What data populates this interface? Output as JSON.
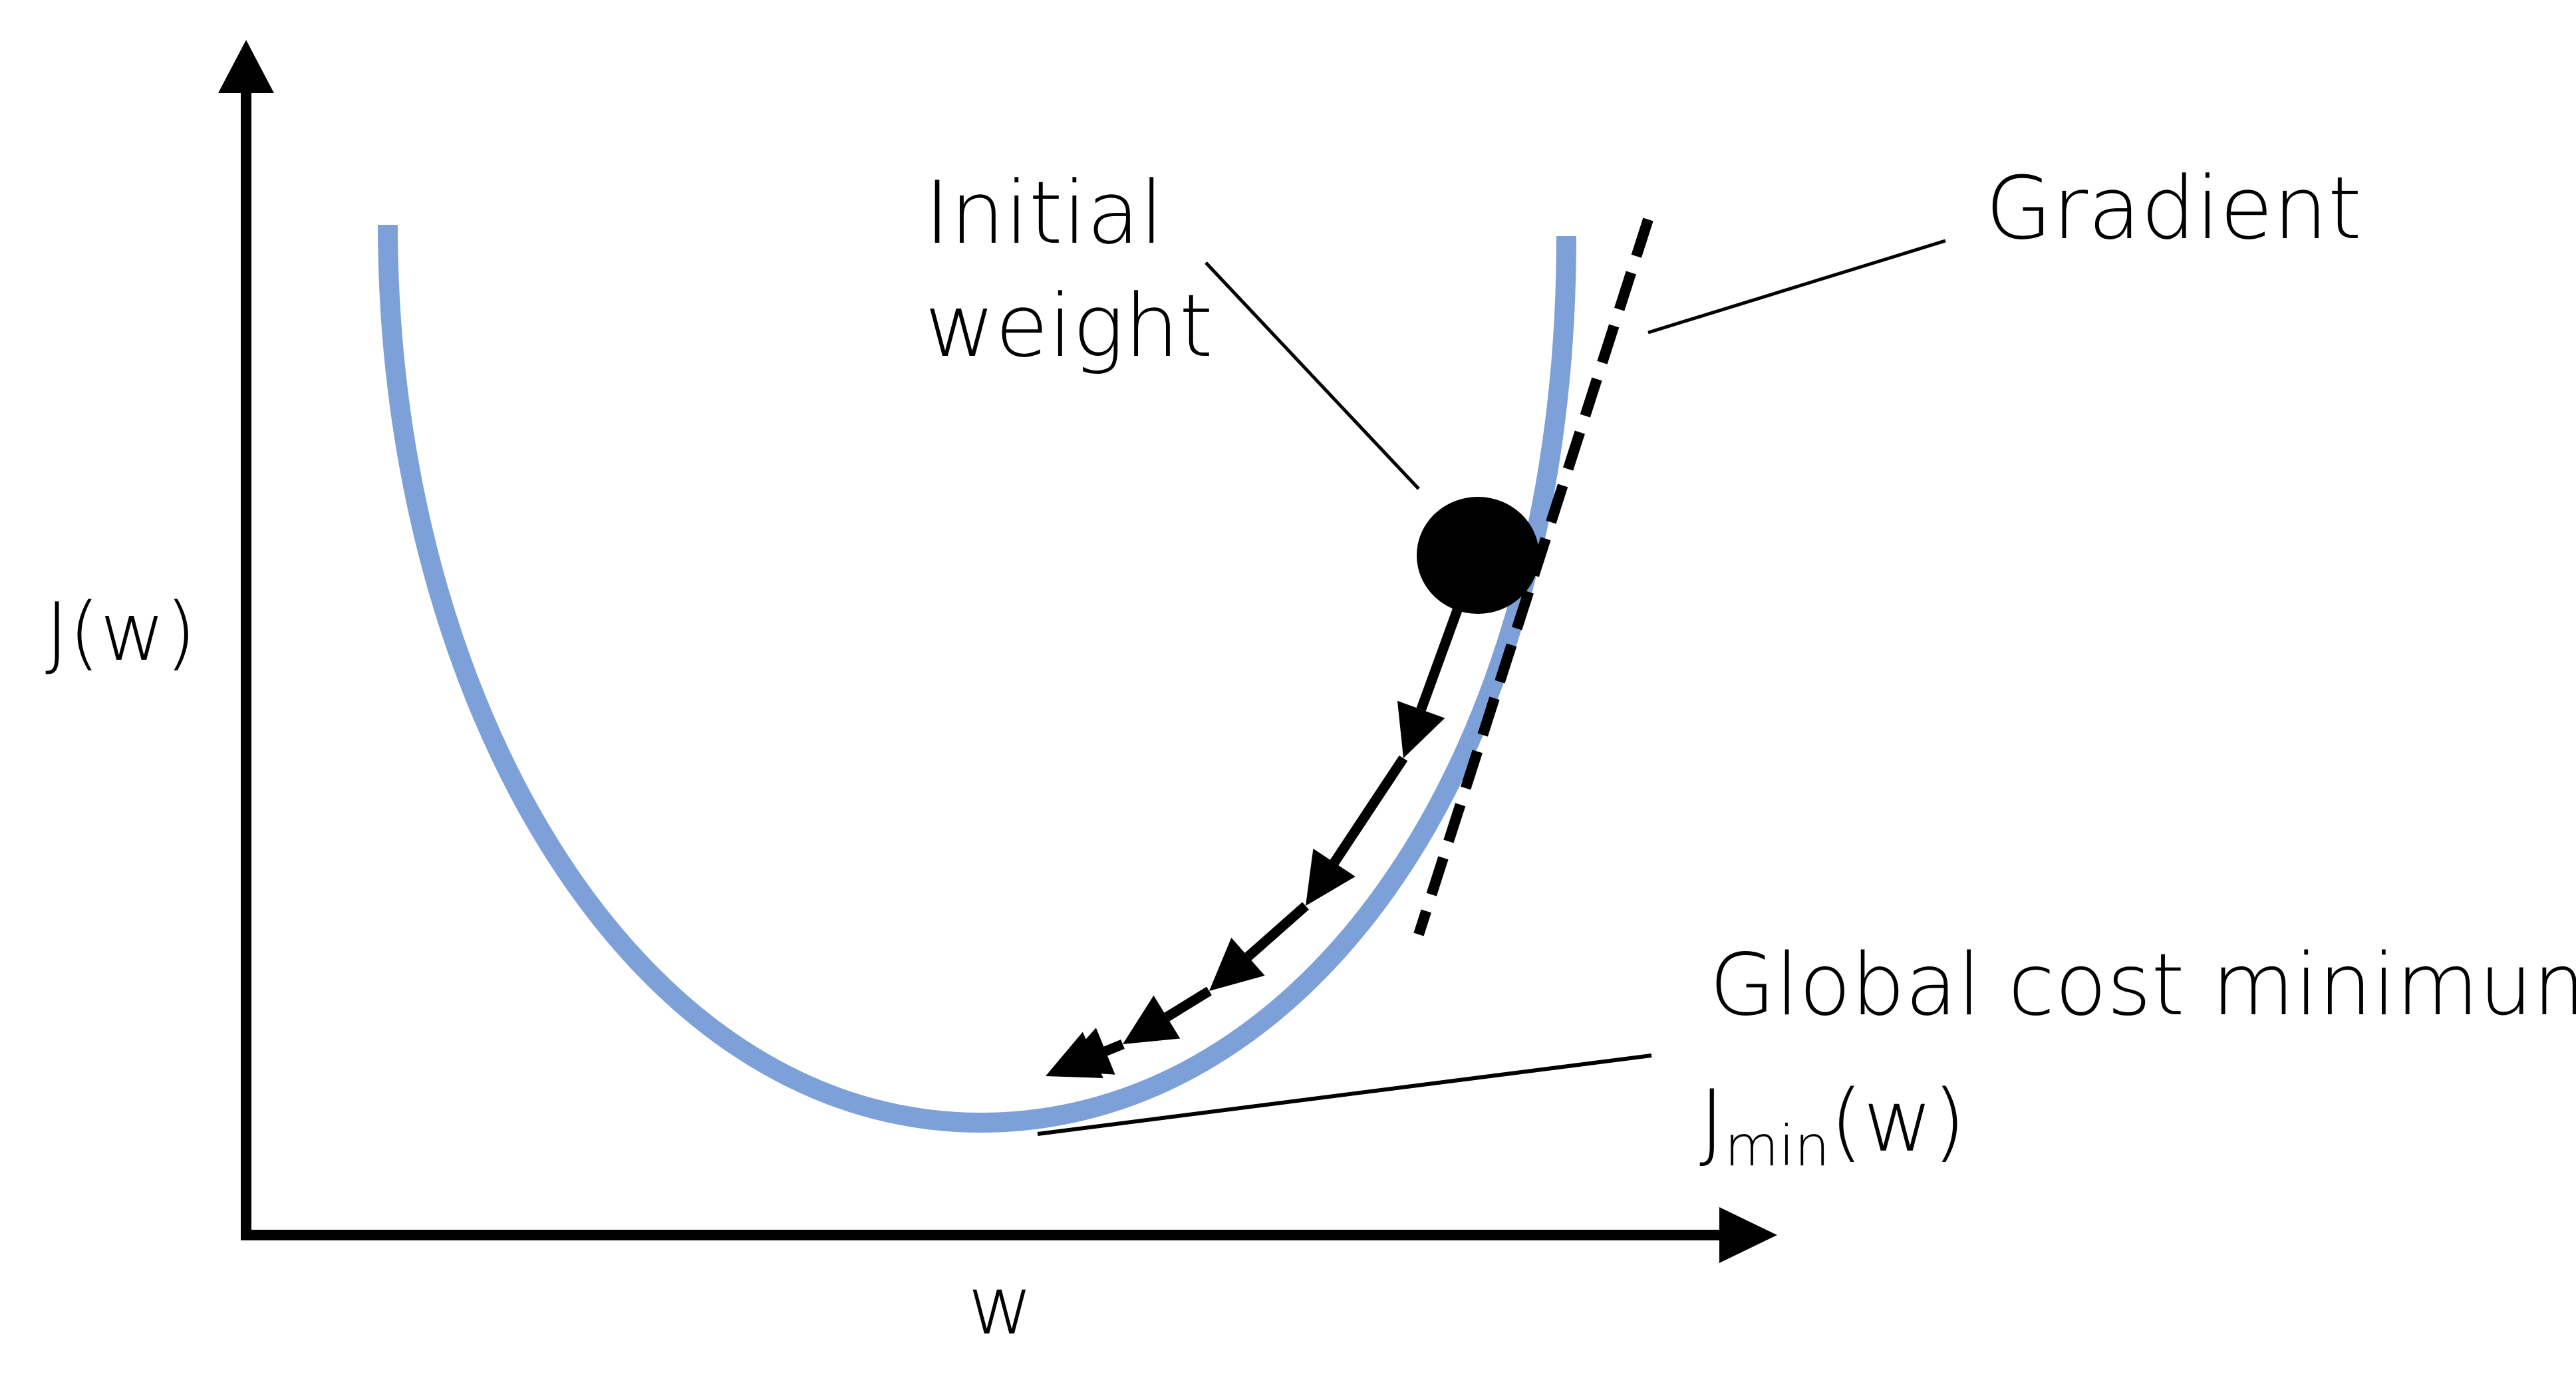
{
  "diagram": {
    "labels": {
      "y_axis": "J(w)",
      "x_axis": "w",
      "initial_weight_line1": "Initial",
      "initial_weight_line2": "weight",
      "gradient": "Gradient",
      "global_min": "Global cost minimum",
      "jmin_main": "J",
      "jmin_sub": "min",
      "jmin_arg": "(w)"
    },
    "colors": {
      "curve": "#7da0d8",
      "ink": "#000000",
      "background": "#ffffff"
    },
    "descent_steps": 6
  }
}
